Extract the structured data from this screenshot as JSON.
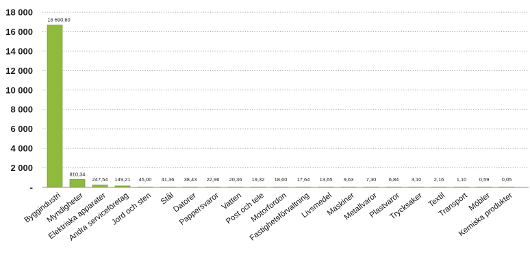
{
  "chart_data": {
    "type": "bar",
    "title": "",
    "xlabel": "",
    "ylabel": "",
    "ylim": [
      0,
      18000
    ],
    "yticks": [
      0,
      2000,
      4000,
      6000,
      8000,
      10000,
      12000,
      14000,
      16000,
      18000
    ],
    "ytick_labels": [
      "-",
      "2 000",
      "4 000",
      "6 000",
      "8 000",
      "10 000",
      "12 000",
      "14 000",
      "16 000",
      "18 000"
    ],
    "grid": true,
    "legend": "none",
    "bar_color": "#8fba3c",
    "bar_edge_color": "#5f8a1e",
    "categories": [
      "Byggindustri",
      "Myndigheter",
      "Elektriska apparater",
      "Andra serviceföretag",
      "Jord och sten",
      "Stål",
      "Datorer",
      "Pappersvaror",
      "Vatten",
      "Post och tele",
      "Motorfordon",
      "Fastighetsförvaltning",
      "Livsmedel",
      "Maskiner",
      "Metallvaror",
      "Plastvaror",
      "Trycksaker",
      "Textil",
      "Transport",
      "Möbler",
      "Kemiska produkter"
    ],
    "values": [
      16690.6,
      810.34,
      247.54,
      149.21,
      45.0,
      41.36,
      38.43,
      22.96,
      20.36,
      19.32,
      18.6,
      17.64,
      13.65,
      9.63,
      7.3,
      6.84,
      3.1,
      2.16,
      1.1,
      0.59,
      0.05
    ],
    "value_labels": [
      "16 690,60",
      "810,34",
      "247,54",
      "149,21",
      "45,00",
      "41,36",
      "38,43",
      "22,96",
      "20,36",
      "19,32",
      "18,60",
      "17,64",
      "13,65",
      "9,63",
      "7,30",
      "6,84",
      "3,10",
      "2,16",
      "1,10",
      "0,59",
      "0,05"
    ]
  }
}
